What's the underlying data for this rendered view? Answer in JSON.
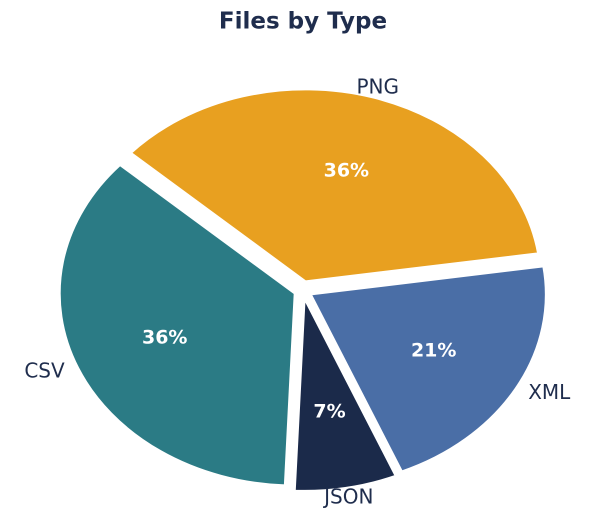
{
  "chart_data": {
    "type": "pie",
    "title": "Files by Type",
    "categories": [
      "PNG",
      "XML",
      "JSON",
      "CSV"
    ],
    "values": [
      36,
      21,
      7,
      36
    ],
    "value_labels": [
      "36%",
      "21%",
      "7%",
      "36%"
    ],
    "colors": [
      "#e8a020",
      "#4a6ea6",
      "#1b2a4a",
      "#2b7b85"
    ]
  }
}
